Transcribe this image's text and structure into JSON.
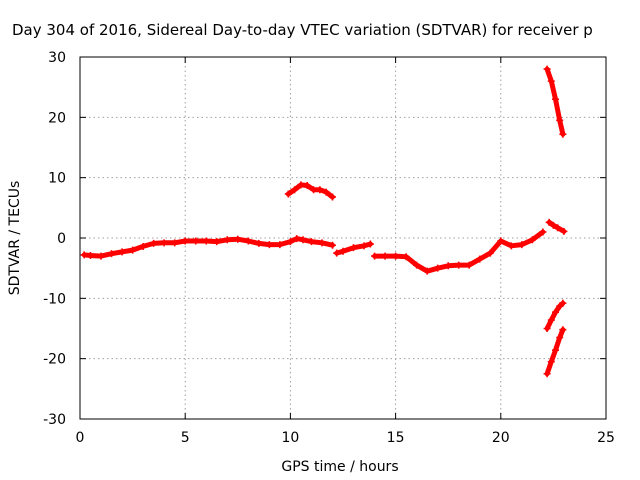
{
  "chart_data": {
    "type": "scatter",
    "title": "Day 304 of 2016, Sidereal Day-to-day VTEC variation (SDTVAR) for receiver p",
    "xlabel": "GPS time / hours",
    "ylabel": "SDTVAR / TECUs",
    "xlim": [
      0,
      25
    ],
    "ylim": [
      -30,
      30
    ],
    "x_ticks": [
      0,
      5,
      10,
      15,
      20,
      25
    ],
    "y_ticks": [
      -30,
      -20,
      -10,
      0,
      10,
      20,
      30
    ],
    "grid": true,
    "legend": "none",
    "marker_color": "#ff0000",
    "series": [
      {
        "segments": [
          [
            [
              0.2,
              -2.8
            ],
            [
              0.5,
              -2.9
            ],
            [
              1.0,
              -3.0
            ],
            [
              1.5,
              -2.6
            ],
            [
              2.0,
              -2.3
            ],
            [
              2.5,
              -2.0
            ],
            [
              3.0,
              -1.4
            ],
            [
              3.5,
              -0.9
            ],
            [
              4.0,
              -0.8
            ],
            [
              4.5,
              -0.8
            ],
            [
              5.0,
              -0.5
            ],
            [
              5.5,
              -0.5
            ],
            [
              6.0,
              -0.5
            ],
            [
              6.5,
              -0.6
            ],
            [
              7.0,
              -0.3
            ],
            [
              7.5,
              -0.2
            ],
            [
              8.0,
              -0.5
            ],
            [
              8.5,
              -0.9
            ],
            [
              9.0,
              -1.1
            ],
            [
              9.5,
              -1.1
            ],
            [
              10.0,
              -0.6
            ],
            [
              10.3,
              -0.1
            ],
            [
              10.6,
              -0.3
            ],
            [
              11.0,
              -0.6
            ],
            [
              11.5,
              -0.8
            ],
            [
              12.0,
              -1.2
            ]
          ],
          [
            [
              12.2,
              -2.5
            ],
            [
              12.5,
              -2.2
            ],
            [
              13.0,
              -1.6
            ],
            [
              13.5,
              -1.3
            ],
            [
              13.8,
              -1.0
            ]
          ],
          [
            [
              14.0,
              -3.0
            ],
            [
              14.5,
              -3.0
            ],
            [
              15.0,
              -3.0
            ],
            [
              15.5,
              -3.1
            ],
            [
              16.0,
              -4.5
            ],
            [
              16.5,
              -5.5
            ],
            [
              17.0,
              -5.0
            ],
            [
              17.5,
              -4.6
            ],
            [
              18.0,
              -4.5
            ],
            [
              18.5,
              -4.5
            ],
            [
              19.0,
              -3.5
            ],
            [
              19.5,
              -2.5
            ],
            [
              20.0,
              -0.5
            ],
            [
              20.5,
              -1.3
            ],
            [
              21.0,
              -1.1
            ],
            [
              21.5,
              -0.3
            ],
            [
              22.0,
              1.0
            ]
          ],
          [
            [
              9.9,
              7.3
            ],
            [
              10.2,
              8.0
            ],
            [
              10.5,
              8.8
            ],
            [
              10.8,
              8.7
            ],
            [
              11.1,
              8.0
            ],
            [
              11.4,
              8.0
            ],
            [
              11.7,
              7.6
            ],
            [
              12.0,
              6.8
            ]
          ],
          [
            [
              22.3,
              2.6
            ],
            [
              22.5,
              2.1
            ],
            [
              22.7,
              1.7
            ],
            [
              23.0,
              1.1
            ]
          ],
          [
            [
              22.2,
              28.0
            ],
            [
              22.4,
              26.0
            ],
            [
              22.6,
              23.0
            ],
            [
              22.8,
              19.5
            ],
            [
              22.95,
              17.2
            ]
          ],
          [
            [
              22.2,
              -15.0
            ],
            [
              22.4,
              -13.6
            ],
            [
              22.6,
              -12.3
            ],
            [
              22.8,
              -11.3
            ],
            [
              22.95,
              -10.8
            ]
          ],
          [
            [
              22.2,
              -22.5
            ],
            [
              22.4,
              -20.5
            ],
            [
              22.6,
              -18.6
            ],
            [
              22.8,
              -16.5
            ],
            [
              22.95,
              -15.2
            ]
          ]
        ]
      }
    ]
  }
}
